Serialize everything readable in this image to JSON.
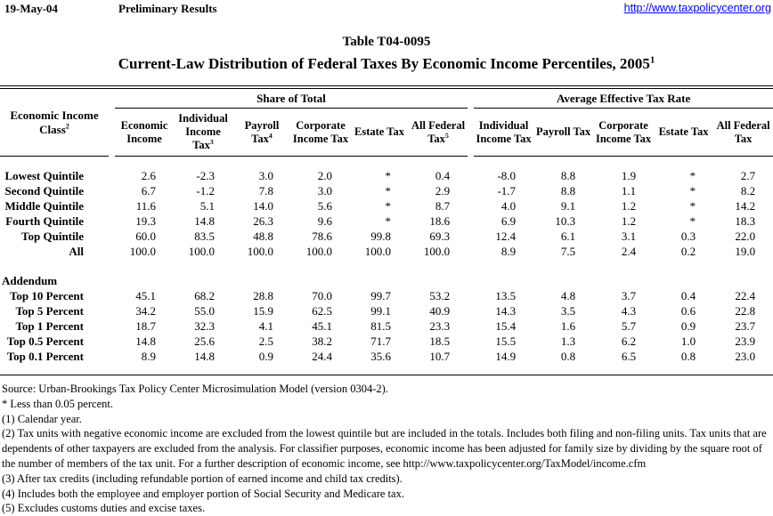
{
  "page_header": {
    "date": "19-May-04",
    "status": "Preliminary Results",
    "link": "http://www.taxpolicycenter.org"
  },
  "title": "Table T04-0095",
  "subtitle": {
    "text": "Current-Law Distribution of Federal Taxes By Economic Income Percentiles, 2005",
    "sup": "1"
  },
  "table": {
    "stub_header": {
      "text": "Economic Income Class",
      "sup": "2"
    },
    "group_headers": [
      {
        "text": "Share of Total"
      },
      {
        "text": "Average Effective Tax Rate"
      }
    ],
    "share_of_total_columns": [
      {
        "text": "Economic Income",
        "sup": ""
      },
      {
        "text": "Individual Income Tax",
        "sup": "3"
      },
      {
        "text": "Payroll Tax",
        "sup": "4"
      },
      {
        "text": "Corporate Income Tax",
        "sup": ""
      },
      {
        "text": "Estate Tax",
        "sup": ""
      },
      {
        "text": "All Federal Tax",
        "sup": "5"
      }
    ],
    "avg_effective_columns": [
      {
        "text": "Individual Income Tax",
        "sup": ""
      },
      {
        "text": "Payroll Tax",
        "sup": ""
      },
      {
        "text": "Corporate Income Tax",
        "sup": ""
      },
      {
        "text": "Estate Tax",
        "sup": ""
      },
      {
        "text": "All Federal Tax",
        "sup": ""
      }
    ],
    "rows": [
      {
        "label": "Lowest Quintile",
        "values": [
          "2.6",
          "-2.3",
          "3.0",
          "2.0",
          "*",
          "0.4",
          "-8.0",
          "8.8",
          "1.9",
          "*",
          "2.7"
        ]
      },
      {
        "label": "Second Quintile",
        "values": [
          "6.7",
          "-1.2",
          "7.8",
          "3.0",
          "*",
          "2.9",
          "-1.7",
          "8.8",
          "1.1",
          "*",
          "8.2"
        ]
      },
      {
        "label": "Middle Quintile",
        "values": [
          "11.6",
          "5.1",
          "14.0",
          "5.6",
          "*",
          "8.7",
          "4.0",
          "9.1",
          "1.2",
          "*",
          "14.2"
        ]
      },
      {
        "label": "Fourth Quintile",
        "values": [
          "19.3",
          "14.8",
          "26.3",
          "9.6",
          "*",
          "18.6",
          "6.9",
          "10.3",
          "1.2",
          "*",
          "18.3"
        ]
      },
      {
        "label": "Top Quintile",
        "values": [
          "60.0",
          "83.5",
          "48.8",
          "78.6",
          "99.8",
          "69.3",
          "12.4",
          "6.1",
          "3.1",
          "0.3",
          "22.0"
        ]
      },
      {
        "label": "All",
        "values": [
          "100.0",
          "100.0",
          "100.0",
          "100.0",
          "100.0",
          "100.0",
          "8.9",
          "7.5",
          "2.4",
          "0.2",
          "19.0"
        ]
      }
    ],
    "addendum_label": "Addendum",
    "addendum_rows": [
      {
        "label": "Top 10 Percent",
        "values": [
          "45.1",
          "68.2",
          "28.8",
          "70.0",
          "99.7",
          "53.2",
          "13.5",
          "4.8",
          "3.7",
          "0.4",
          "22.4"
        ]
      },
      {
        "label": "Top 5 Percent",
        "values": [
          "34.2",
          "55.0",
          "15.9",
          "62.5",
          "99.1",
          "40.9",
          "14.3",
          "3.5",
          "4.3",
          "0.6",
          "22.8"
        ]
      },
      {
        "label": "Top 1 Percent",
        "values": [
          "18.7",
          "32.3",
          "4.1",
          "45.1",
          "81.5",
          "23.3",
          "15.4",
          "1.6",
          "5.7",
          "0.9",
          "23.7"
        ]
      },
      {
        "label": "Top 0.5 Percent",
        "values": [
          "14.8",
          "25.6",
          "2.5",
          "38.2",
          "71.7",
          "18.5",
          "15.5",
          "1.3",
          "6.2",
          "1.0",
          "23.9"
        ]
      },
      {
        "label": "Top 0.1 Percent",
        "values": [
          "8.9",
          "14.8",
          "0.9",
          "24.4",
          "35.6",
          "10.7",
          "14.9",
          "0.8",
          "6.5",
          "0.8",
          "23.0"
        ]
      }
    ]
  },
  "footnotes": [
    "Source: Urban-Brookings Tax Policy Center Microsimulation Model (version 0304-2).",
    "* Less than 0.05 percent.",
    "(1) Calendar year.",
    "(2) Tax units with negative economic income are excluded from the lowest quintile but are included in the totals. Includes both filing and non-filing units. Tax units that are dependents of other taxpayers are excluded from the analysis. For classifier purposes, economic income has been adjusted for family size by dividing by the square root of the number of members of the tax unit.  For a further description of economic income, see http://www.taxpolicycenter.org/TaxModel/income.cfm",
    "(3) After tax credits (including refundable portion of earned income and child tax credits).",
    "(4) Includes both the employee and employer portion of Social Security and Medicare tax.",
    "(5) Excludes customs duties and excise taxes."
  ],
  "colors": {
    "link": "#0000EE",
    "text": "#000000",
    "background": "#FFFFFF"
  }
}
